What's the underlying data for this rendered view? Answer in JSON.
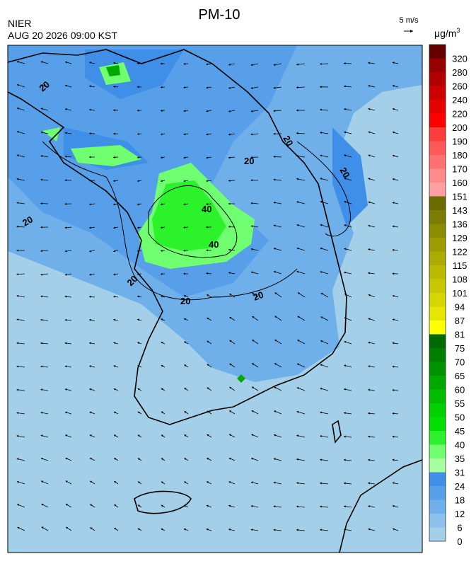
{
  "header": {
    "title": "PM-10",
    "agency": "NIER",
    "datetime": "AUG 20 2026 09:00 KST",
    "wind_scale": "5 m/s"
  },
  "colorbar": {
    "unit": "μg/m",
    "unit_power": "3",
    "levels": [
      "0",
      "6",
      "12",
      "18",
      "24",
      "31",
      "35",
      "40",
      "45",
      "50",
      "55",
      "60",
      "65",
      "70",
      "75",
      "81",
      "87",
      "94",
      "101",
      "108",
      "115",
      "122",
      "129",
      "136",
      "143",
      "151",
      "160",
      "170",
      "180",
      "190",
      "200",
      "220",
      "240",
      "260",
      "280",
      "320"
    ],
    "colors": [
      "#a3cfe8",
      "#8cc1ec",
      "#70b0ea",
      "#579fe9",
      "#3f8ee8",
      "#a8ffa0",
      "#70ff70",
      "#2cf22c",
      "#00e000",
      "#00cf00",
      "#00bd00",
      "#00a800",
      "#009200",
      "#007e00",
      "#006a00",
      "#ffff00",
      "#e6e600",
      "#d6d600",
      "#c8c800",
      "#baba00",
      "#abab00",
      "#9c9c00",
      "#8c8c00",
      "#7c7c00",
      "#6b6b00",
      "#ffa0a0",
      "#ff8a8a",
      "#ff7070",
      "#ff5858",
      "#ff3c3c",
      "#ff0000",
      "#e60000",
      "#cc0000",
      "#b20000",
      "#960000",
      "#660000"
    ]
  },
  "contour_labels": [
    "20",
    "40"
  ]
}
